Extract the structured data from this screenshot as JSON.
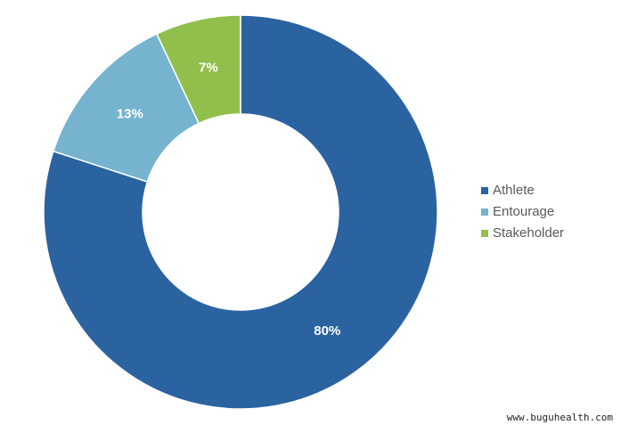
{
  "chart_data": {
    "type": "pie",
    "categories": [
      "Athlete",
      "Entourage",
      "Stakeholder"
    ],
    "values": [
      80,
      13,
      7
    ],
    "value_labels": [
      "80%",
      "13%",
      "7%"
    ],
    "colors": [
      "#2a63a0",
      "#75b3cf",
      "#92bf4c"
    ],
    "donut": true,
    "legend": "right",
    "watermark": "www.buguhealth.com"
  }
}
